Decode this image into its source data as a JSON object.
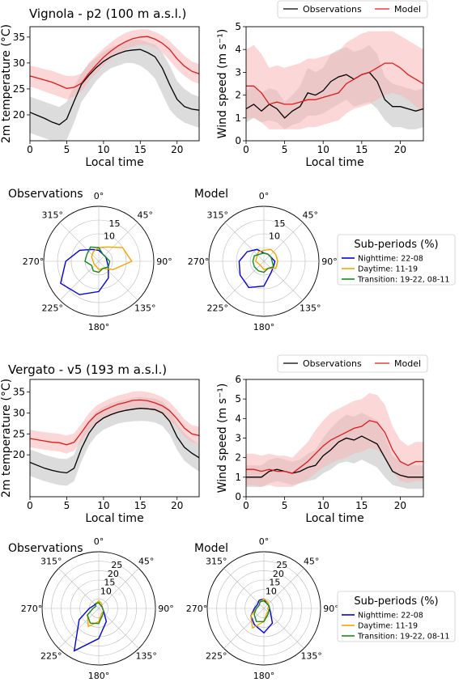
{
  "panels": [
    {
      "title": "Vignola - p2  (100 m a.s.l.)",
      "legend": {
        "obs": "Observations",
        "model": "Model"
      },
      "temperature": {
        "ylabel": "2m temperature (°C)",
        "xlabel": "Local time",
        "xticks": [
          "0",
          "5",
          "10",
          "15",
          "20"
        ],
        "yticks": [
          "20",
          "25",
          "30",
          "35"
        ],
        "ylim": [
          15,
          37
        ],
        "obs": [
          20.5,
          19.9,
          19.3,
          18.6,
          18.1,
          19.2,
          22.6,
          25.9,
          27.6,
          29.1,
          30.3,
          31.2,
          31.8,
          32.3,
          32.5,
          32.6,
          32.0,
          31.2,
          29.0,
          25.8,
          23.0,
          21.6,
          21.1,
          20.9
        ],
        "obs_lo": [
          16.5,
          16.0,
          15.5,
          15.0,
          15.0,
          15.2,
          18.5,
          22.5,
          24.5,
          26.5,
          28.0,
          29.0,
          29.5,
          30.0,
          30.0,
          29.5,
          28.5,
          27.0,
          24.0,
          21.0,
          19.5,
          18.5,
          18.0,
          17.5
        ],
        "obs_hi": [
          23.5,
          23.0,
          22.5,
          22.0,
          21.5,
          22.5,
          25.5,
          28.0,
          29.8,
          31.0,
          32.2,
          33.0,
          33.5,
          34.0,
          34.5,
          34.5,
          34.0,
          33.5,
          32.0,
          29.5,
          26.5,
          25.0,
          24.0,
          23.5
        ],
        "model": [
          27.5,
          27.1,
          26.7,
          26.3,
          25.7,
          25.1,
          25.3,
          26.1,
          28.0,
          29.6,
          31.1,
          32.3,
          33.3,
          34.1,
          34.7,
          35.0,
          35.1,
          34.6,
          33.8,
          32.6,
          30.8,
          29.4,
          28.4,
          27.9
        ],
        "model_lo": [
          25.5,
          25.0,
          24.5,
          24.0,
          23.5,
          23.0,
          23.5,
          24.5,
          26.5,
          28.0,
          29.5,
          30.8,
          31.8,
          32.6,
          33.2,
          33.5,
          33.5,
          33.0,
          32.0,
          30.5,
          28.8,
          27.5,
          26.5,
          26.0
        ],
        "model_hi": [
          29.5,
          29.2,
          28.8,
          28.5,
          28.0,
          27.5,
          27.5,
          28.0,
          30.0,
          31.5,
          32.8,
          34.0,
          35.0,
          35.8,
          36.3,
          36.5,
          36.5,
          36.0,
          35.3,
          34.2,
          32.8,
          31.4,
          30.3,
          29.8
        ]
      },
      "wind": {
        "ylabel": "Wind speed (m s⁻¹)",
        "xlabel": "Local time",
        "xticks": [
          "0",
          "5",
          "10",
          "15",
          "20"
        ],
        "yticks": [
          "0",
          "1",
          "2",
          "3",
          "4",
          "5"
        ],
        "ylim": [
          0,
          5
        ],
        "obs": [
          1.4,
          1.6,
          1.3,
          1.6,
          1.4,
          1.0,
          1.3,
          1.5,
          2.1,
          2.0,
          2.2,
          2.6,
          2.8,
          2.9,
          2.7,
          2.9,
          3.0,
          2.6,
          1.8,
          1.5,
          1.5,
          1.4,
          1.3,
          1.4
        ],
        "obs_lo": [
          0.8,
          1.0,
          0.8,
          0.9,
          0.8,
          0.5,
          0.7,
          0.8,
          1.1,
          1.1,
          1.2,
          1.4,
          1.6,
          1.8,
          1.5,
          1.6,
          1.7,
          1.4,
          0.9,
          0.6,
          0.6,
          0.5,
          0.5,
          0.6
        ],
        "obs_hi": [
          2.2,
          2.4,
          2.1,
          2.3,
          2.2,
          1.7,
          2.0,
          2.4,
          3.2,
          3.0,
          3.2,
          3.8,
          4.0,
          4.1,
          3.9,
          4.0,
          4.2,
          3.8,
          2.8,
          2.5,
          2.4,
          2.3,
          2.2,
          2.3
        ],
        "model": [
          2.4,
          2.4,
          2.1,
          1.6,
          1.7,
          1.6,
          1.6,
          1.7,
          1.8,
          1.8,
          1.9,
          2.0,
          2.1,
          2.5,
          2.7,
          2.9,
          3.0,
          3.2,
          3.4,
          3.4,
          3.2,
          2.9,
          2.7,
          2.5
        ],
        "model_lo": [
          1.0,
          1.0,
          0.8,
          0.5,
          0.5,
          0.5,
          0.5,
          0.5,
          0.6,
          0.6,
          0.7,
          0.8,
          0.9,
          1.2,
          1.4,
          1.5,
          1.6,
          1.8,
          2.0,
          2.1,
          2.0,
          1.8,
          1.5,
          1.3
        ],
        "model_hi": [
          4.0,
          4.2,
          3.8,
          3.2,
          3.3,
          3.2,
          3.3,
          3.4,
          3.6,
          3.6,
          3.7,
          3.8,
          3.9,
          4.3,
          4.5,
          4.7,
          4.8,
          4.8,
          4.8,
          4.8,
          4.6,
          4.4,
          4.2,
          4.0
        ]
      },
      "roses": [
        {
          "title": "Observations",
          "nighttime": [
            4,
            3,
            3,
            3,
            4,
            7,
            11,
            14,
            16,
            12,
            8,
            5
          ],
          "daytime": [
            5,
            6,
            10,
            12,
            6,
            3,
            3,
            2,
            2,
            2,
            3,
            4
          ],
          "transition": [
            5,
            3,
            3,
            4,
            4,
            3,
            4,
            4,
            3,
            5,
            5,
            6
          ]
        },
        {
          "title": "Model",
          "nighttime": [
            3,
            3,
            3,
            4,
            4,
            5,
            9,
            11,
            10,
            9,
            7,
            5
          ],
          "daytime": [
            4,
            5,
            5,
            5,
            5,
            3,
            3,
            2,
            2,
            3,
            3,
            4
          ],
          "transition": [
            3,
            3,
            3,
            3,
            4,
            3,
            4,
            4,
            4,
            4,
            4,
            3
          ]
        }
      ],
      "rose_rticks": [
        "10",
        "15"
      ],
      "rose_rmax": 20
    },
    {
      "title": "Vergato - v5  (193 m a.s.l.)",
      "legend": {
        "obs": "Observations",
        "model": "Model"
      },
      "temperature": {
        "ylabel": "2m temperature (°C)",
        "xlabel": "Local time",
        "xticks": [
          "0",
          "5",
          "10",
          "15",
          "20"
        ],
        "yticks": [
          "20",
          "25",
          "30",
          "35"
        ],
        "ylim": [
          10,
          38
        ],
        "obs": [
          18.2,
          17.5,
          16.8,
          16.3,
          15.9,
          15.7,
          16.8,
          21.5,
          25.1,
          27.5,
          28.8,
          29.6,
          30.2,
          30.6,
          30.9,
          31.1,
          31.0,
          30.8,
          30.0,
          28.0,
          24.3,
          21.8,
          20.4,
          19.3
        ],
        "obs_lo": [
          15.0,
          14.3,
          13.7,
          13.2,
          12.8,
          12.6,
          13.7,
          18.5,
          22.2,
          24.6,
          26.0,
          26.8,
          27.5,
          27.8,
          28.0,
          28.1,
          28.0,
          27.7,
          26.9,
          24.8,
          21.2,
          18.6,
          17.2,
          16.0
        ],
        "obs_hi": [
          21.3,
          20.7,
          20.0,
          19.5,
          19.1,
          19.0,
          20.0,
          24.6,
          28.1,
          30.3,
          31.5,
          32.3,
          32.8,
          33.2,
          33.6,
          33.8,
          33.6,
          33.4,
          32.7,
          30.8,
          27.4,
          25.1,
          23.7,
          22.6
        ],
        "model": [
          23.9,
          23.6,
          23.3,
          23.0,
          22.9,
          22.4,
          23.0,
          25.3,
          27.8,
          29.6,
          30.6,
          31.4,
          32.1,
          32.5,
          33.0,
          33.1,
          32.9,
          32.4,
          31.7,
          30.5,
          28.6,
          26.4,
          25.0,
          24.6
        ],
        "model_lo": [
          21.8,
          21.5,
          21.2,
          21.0,
          20.8,
          20.3,
          21.0,
          23.3,
          25.8,
          27.6,
          28.6,
          29.4,
          30.0,
          30.5,
          31.0,
          31.1,
          30.9,
          30.4,
          29.6,
          28.4,
          26.6,
          24.3,
          23.0,
          22.6
        ],
        "model_hi": [
          26.0,
          25.7,
          25.4,
          25.2,
          25.0,
          24.6,
          25.1,
          27.4,
          29.9,
          31.7,
          32.7,
          33.5,
          34.2,
          34.6,
          35.1,
          35.2,
          35.0,
          34.5,
          33.8,
          32.6,
          30.7,
          28.5,
          27.1,
          26.7
        ]
      },
      "wind": {
        "ylabel": "Wind speed (m s⁻¹)",
        "xlabel": "Local time",
        "xticks": [
          "0",
          "5",
          "10",
          "15",
          "20"
        ],
        "yticks": [
          "0",
          "1",
          "2",
          "3",
          "4",
          "5",
          "6"
        ],
        "ylim": [
          0,
          6
        ],
        "obs": [
          1.0,
          1.0,
          1.0,
          1.3,
          1.4,
          1.3,
          1.2,
          1.3,
          1.5,
          1.6,
          2.1,
          2.4,
          2.8,
          3.0,
          2.9,
          3.1,
          2.9,
          2.7,
          2.0,
          1.3,
          1.1,
          1.0,
          1.0,
          1.0
        ],
        "obs_lo": [
          0.5,
          0.5,
          0.5,
          0.7,
          0.8,
          0.7,
          0.6,
          0.7,
          0.8,
          0.9,
          1.2,
          1.4,
          1.7,
          1.8,
          1.7,
          1.9,
          1.7,
          1.5,
          1.0,
          0.6,
          0.5,
          0.4,
          0.4,
          0.4
        ],
        "obs_hi": [
          1.6,
          1.6,
          1.6,
          1.9,
          2.0,
          1.9,
          1.8,
          1.9,
          2.2,
          2.4,
          3.0,
          3.5,
          3.9,
          4.2,
          4.1,
          4.3,
          4.1,
          3.9,
          3.1,
          2.1,
          1.8,
          1.6,
          1.6,
          1.6
        ],
        "model": [
          1.4,
          1.4,
          1.3,
          1.4,
          1.3,
          1.3,
          1.2,
          1.5,
          1.8,
          2.2,
          2.6,
          2.9,
          3.1,
          3.3,
          3.5,
          3.6,
          3.9,
          3.8,
          3.3,
          2.4,
          1.8,
          1.6,
          1.8,
          1.8
        ],
        "model_lo": [
          0.6,
          0.6,
          0.5,
          0.6,
          0.5,
          0.5,
          0.5,
          0.7,
          0.9,
          1.2,
          1.5,
          1.7,
          1.9,
          2.0,
          2.2,
          2.3,
          2.5,
          2.4,
          2.0,
          1.3,
          0.8,
          0.7,
          0.8,
          0.8
        ],
        "model_hi": [
          2.2,
          2.2,
          2.1,
          2.2,
          2.1,
          2.1,
          2.0,
          2.4,
          2.8,
          3.4,
          3.9,
          4.3,
          4.5,
          4.7,
          4.9,
          5.0,
          5.3,
          5.2,
          4.7,
          3.6,
          2.9,
          2.6,
          2.8,
          2.8
        ]
      },
      "roses": [
        {
          "title": "Observations",
          "nighttime": [
            3,
            2,
            2,
            2,
            3,
            8,
            16,
            26,
            12,
            5,
            3,
            3
          ],
          "daytime": [
            4,
            3,
            2,
            2,
            3,
            3,
            7,
            11,
            7,
            3,
            2,
            3
          ],
          "transition": [
            3,
            2,
            2,
            2,
            3,
            4,
            8,
            9,
            7,
            3,
            2,
            3
          ]
        },
        {
          "title": "Model",
          "nighttime": [
            5,
            3,
            3,
            3,
            4,
            9,
            13,
            10,
            8,
            5,
            4,
            5
          ],
          "daytime": [
            5,
            4,
            3,
            2,
            3,
            3,
            7,
            12,
            8,
            4,
            3,
            4
          ],
          "transition": [
            4,
            3,
            3,
            3,
            3,
            4,
            7,
            8,
            6,
            4,
            3,
            4
          ]
        }
      ],
      "rose_rticks": [
        "10",
        "15",
        "20",
        "25"
      ],
      "rose_rmax": 30
    }
  ],
  "rose_dir_labels": [
    "0°",
    "45°",
    "90°",
    "135°",
    "180°",
    "225°",
    "270°",
    "315°"
  ],
  "subperiod_legend": {
    "title": "Sub-periods (%)",
    "items": [
      "Nighttime: 22-08",
      "Daytime: 11-19",
      "Transition: 19-22, 08-11"
    ]
  },
  "colors": {
    "obs": "#000000",
    "model": "#e0191c",
    "obs_band": "#bfbfbf",
    "model_band": "#f7b6b6",
    "nighttime": "#0000dd",
    "daytime": "#f5a500",
    "transition": "#178a17"
  }
}
